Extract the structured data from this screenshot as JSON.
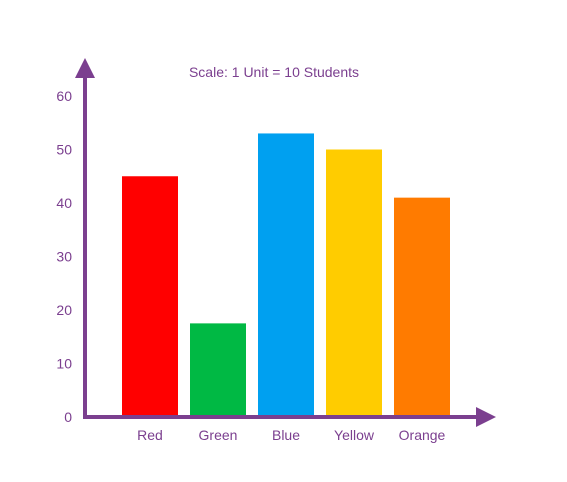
{
  "chart_data": {
    "type": "bar",
    "title": "Scale: 1 Unit = 10 Students",
    "xlabel": "",
    "ylabel": "",
    "categories": [
      "Red",
      "Green",
      "Blue",
      "Yellow",
      "Orange"
    ],
    "values": [
      45,
      17.5,
      53,
      50,
      41
    ],
    "bar_colors": [
      "#ff0000",
      "#00b944",
      "#00a0f0",
      "#ffcc00",
      "#ff7b00"
    ],
    "ylim": [
      0,
      60
    ],
    "yticks": [
      0,
      10,
      20,
      30,
      40,
      50,
      60
    ],
    "grid": false,
    "legend": "none",
    "axis_color": "#7b3f8f"
  }
}
